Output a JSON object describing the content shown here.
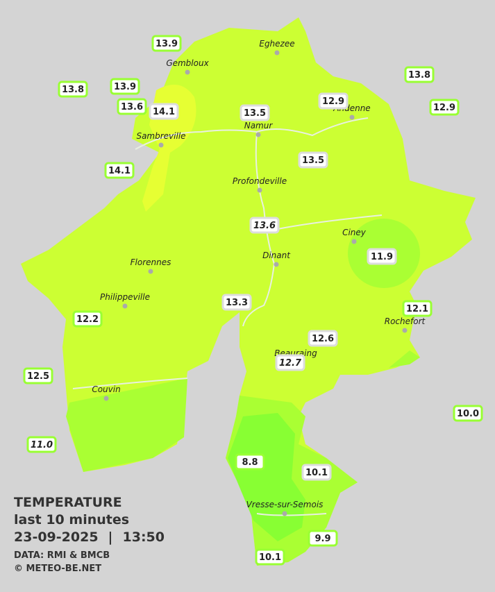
{
  "legend": {
    "title": "TEMPERATURE",
    "period": "last 10 minutes",
    "date": "23-09-2025",
    "separator": "|",
    "time": "13:50",
    "source": "DATA: RMI & BMCB",
    "copyright": "© METEO-BE.NET"
  },
  "places": [
    "Eghezee",
    "Gembloux",
    "Andenne",
    "Namur",
    "Sambreville",
    "Profondeville",
    "Ciney",
    "Dinant",
    "Florennes",
    "Philippeville",
    "Rochefort",
    "Beauraing",
    "Couvin",
    "Vresse-sur-Semois"
  ],
  "stations": [
    "13.9",
    "13.8",
    "13.9",
    "13.6",
    "14.1",
    "14.1",
    "13.5",
    "12.9",
    "13.8",
    "12.9",
    "13.5",
    "13.6",
    "11.9",
    "13.3",
    "12.2",
    "12.1",
    "12.6",
    "12.7",
    "12.5",
    "10.0",
    "11.0",
    "8.8",
    "10.1",
    "9.9",
    "10.1"
  ]
}
